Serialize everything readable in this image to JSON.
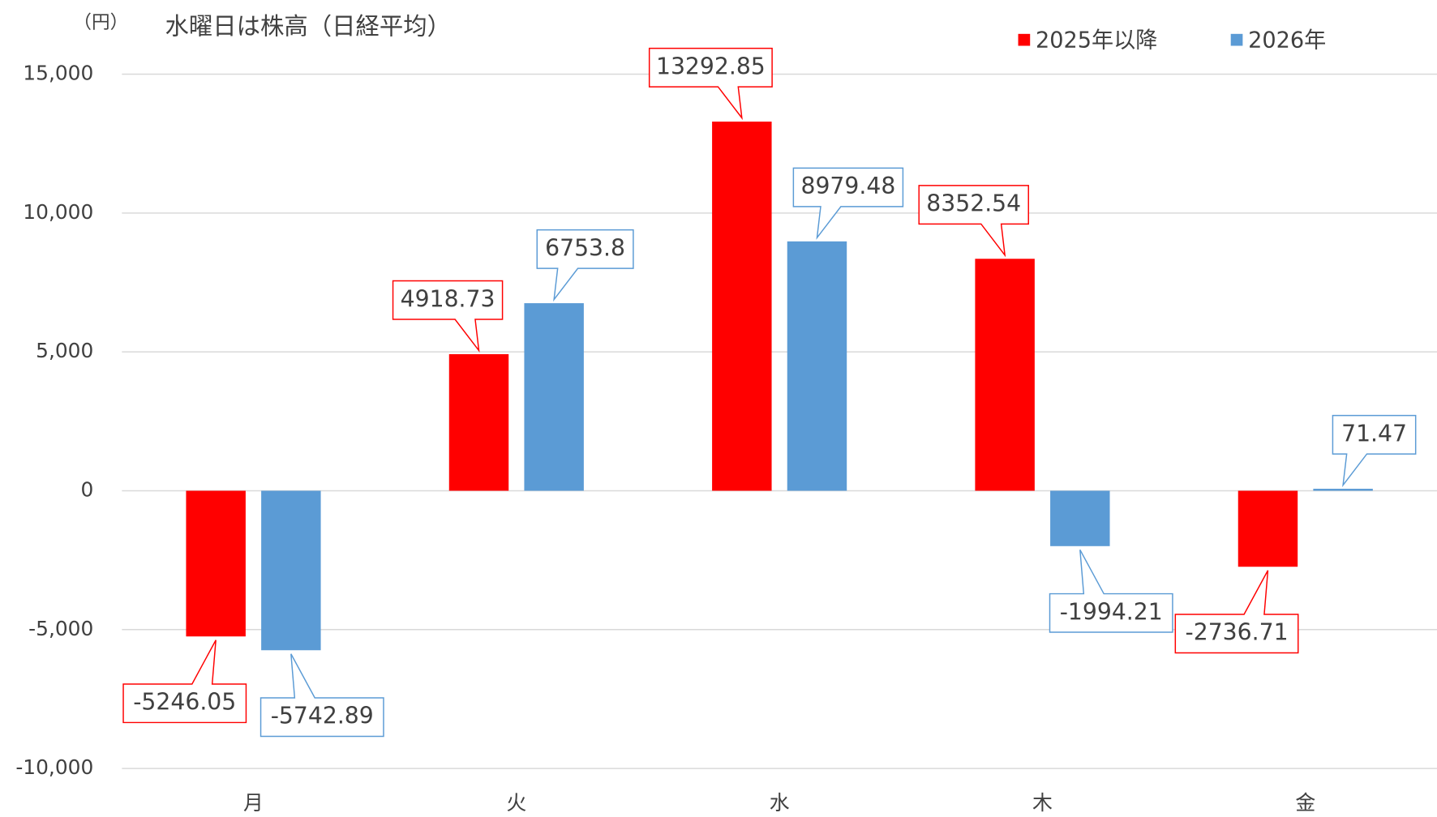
{
  "chart_data": {
    "type": "bar",
    "title": "水曜日は株高（日経平均）",
    "y_label": "（円）",
    "categories": [
      "月",
      "火",
      "水",
      "木",
      "金"
    ],
    "series": [
      {
        "name": "2025年以降",
        "color": "#ff0000",
        "values": [
          -5246.05,
          4918.73,
          13292.85,
          8352.54,
          -2736.71
        ]
      },
      {
        "name": "2026年",
        "color": "#5b9bd5",
        "values": [
          -5742.89,
          6753.8,
          8979.48,
          -1994.21,
          71.47
        ]
      }
    ],
    "ylim": [
      -10000,
      15000
    ],
    "yticks": [
      {
        "value": -10000,
        "label": "-10,000"
      },
      {
        "value": -5000,
        "label": "-5,000"
      },
      0,
      {
        "value": 5000,
        "label": "5,000"
      },
      {
        "value": 10000,
        "label": "10,000"
      },
      {
        "value": 15000,
        "label": "15,000"
      }
    ],
    "grid": true,
    "legend": "top-right"
  }
}
